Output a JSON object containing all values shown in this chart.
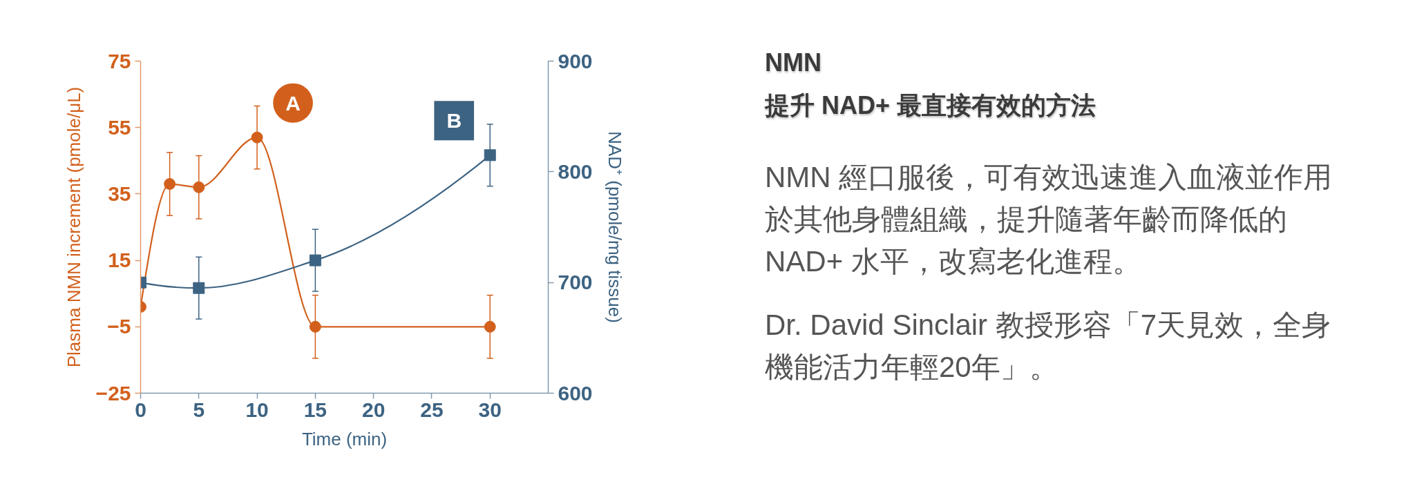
{
  "chart_data": {
    "type": "line",
    "title": "NMN",
    "subtitle": "提升 NAD+ 最直接有效的方法",
    "xlabel": "Time (min)",
    "ylabel": "Plasma NMN increment (pmole/μL)",
    "y2label": "NAD⁺ (pmole/mg tissue)",
    "xlim": [
      0,
      35
    ],
    "xticks": [
      0,
      5,
      10,
      15,
      20,
      25,
      30
    ],
    "ylim": [
      -25,
      75
    ],
    "yticks": [
      -25,
      -5,
      15,
      35,
      55,
      75
    ],
    "y2lim": [
      600,
      900
    ],
    "y2ticks": [
      600,
      700,
      800,
      900
    ],
    "series": [
      {
        "name": "A",
        "x": [
          0,
          2.5,
          5,
          10,
          15,
          30
        ],
        "values": [
          1,
          38,
          37,
          52,
          -5,
          -5
        ],
        "errors": [
          null,
          9.5,
          9.5,
          9.5,
          9.5,
          9.5
        ],
        "color": "#d2601c",
        "marker": "circle"
      },
      {
        "name": "B",
        "x": [
          0,
          5,
          15,
          30
        ],
        "values": [
          700,
          695,
          720,
          815
        ],
        "errors": [
          null,
          28,
          28,
          28
        ],
        "color": "#3d6382",
        "marker": "square",
        "axis": "y2"
      }
    ],
    "annotations": [
      "NMN 經口服後，可有效迅速進入血液並作用於其他身體組織，提升隨著年齡而降低的 NAD+ 水平，改寫老化進程。",
      "Dr. David Sinclair 教授形容「7天見效，全身機能活力年輕20年」。"
    ]
  }
}
